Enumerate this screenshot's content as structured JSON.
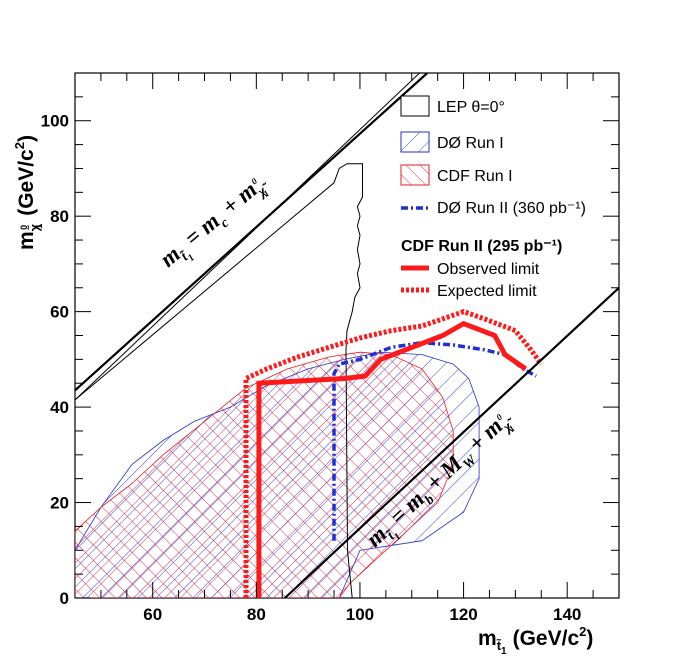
{
  "chart_data": {
    "type": "line",
    "xlim": [
      45,
      150
    ],
    "ylim": [
      0,
      110
    ],
    "x_ticks": [
      60,
      80,
      100,
      120,
      140
    ],
    "y_ticks": [
      0,
      20,
      40,
      60,
      80,
      100
    ],
    "grid": false,
    "legend_placement": "top-right",
    "xlabel": {
      "main": "m",
      "sub": "t̃",
      "subsub": "1",
      "unit": "(GeV/c",
      "sup": "2",
      "close": ")"
    },
    "ylabel": {
      "main": "m",
      "sub": "χ̃",
      "subsup": "0",
      "subsub": "1",
      "unit": "(GeV/c",
      "sup": "2",
      "close": ")"
    },
    "kinematic_labels": [
      {
        "id": "charm",
        "lhs": "m",
        "lhs_sub": "t̃",
        "lhs_subsub": "1",
        "eq": " = ",
        "t1": "m",
        "t1_sub": "c",
        "plus": " + ",
        "t2": "m",
        "t2_sub": "χ̃",
        "t2_subsup": "0",
        "t2_subsub": "1"
      },
      {
        "id": "bottom",
        "lhs": "m",
        "lhs_sub": "t̃",
        "lhs_subsub": "1",
        "eq": " = ",
        "t1": "m",
        "t1_sub": "b",
        "plus": " + ",
        "w": "M",
        "w_sub": "W",
        "plus2": " + ",
        "t2": "m",
        "t2_sub": "χ̃",
        "t2_subsup": "0",
        "t2_subsub": "1"
      }
    ],
    "kinematic_lines": [
      {
        "name": "charm",
        "points": [
          [
            45,
            43.5
          ],
          [
            113,
            110
          ]
        ]
      },
      {
        "name": "charm-inner",
        "points": [
          [
            45,
            41.5
          ],
          [
            111.5,
            110
          ]
        ]
      },
      {
        "name": "bottom",
        "points": [
          [
            85.5,
            0
          ],
          [
            150,
            65
          ]
        ]
      }
    ],
    "legend": {
      "lep": "LEP θ=0°",
      "d0_run1": "DØ Run I",
      "cdf_run1": "CDF Run I",
      "d0_run2": "DØ Run II (360 pb⁻¹)",
      "cdf_run2_head": "CDF Run II (295 pb⁻¹)",
      "observed": "Observed limit",
      "expected": "Expected limit"
    },
    "series": [
      {
        "name": "LEP θ=0°",
        "style": "thin-black",
        "points": [
          [
            45,
            41.5
          ],
          [
            95,
            87
          ],
          [
            96,
            90
          ],
          [
            97.5,
            91
          ],
          [
            100.5,
            91
          ],
          [
            100.5,
            84
          ],
          [
            99.5,
            82
          ],
          [
            100,
            80
          ],
          [
            99.5,
            78
          ],
          [
            100,
            76
          ],
          [
            99.5,
            73
          ],
          [
            100,
            70
          ],
          [
            99.5,
            68
          ],
          [
            100,
            65
          ],
          [
            99,
            63
          ],
          [
            98.5,
            60
          ],
          [
            97.5,
            56
          ],
          [
            97.3,
            52
          ],
          [
            97.6,
            10
          ],
          [
            98.5,
            0
          ]
        ]
      },
      {
        "name": "DØ Run I",
        "style": "blue-hatch",
        "points": [
          [
            45,
            10
          ],
          [
            50,
            19
          ],
          [
            56,
            28
          ],
          [
            62,
            33
          ],
          [
            68,
            37
          ],
          [
            75,
            40
          ],
          [
            82,
            44.5
          ],
          [
            90,
            48
          ],
          [
            97,
            50
          ],
          [
            104,
            51.5
          ],
          [
            112,
            51
          ],
          [
            118,
            49
          ],
          [
            121,
            46
          ],
          [
            123,
            40
          ],
          [
            123,
            25
          ],
          [
            120,
            18
          ],
          [
            112,
            12
          ],
          [
            100,
            10
          ],
          [
            96,
            0
          ],
          [
            45,
            0
          ]
        ]
      },
      {
        "name": "CDF Run I",
        "style": "red-crosshatch",
        "points": [
          [
            45,
            14
          ],
          [
            50,
            19
          ],
          [
            56,
            24
          ],
          [
            62,
            30
          ],
          [
            70,
            37
          ],
          [
            78,
            44
          ],
          [
            86,
            48
          ],
          [
            94,
            50.5
          ],
          [
            100,
            51.5
          ],
          [
            106,
            51
          ],
          [
            112,
            48
          ],
          [
            116,
            42
          ],
          [
            118,
            35
          ],
          [
            118,
            28
          ],
          [
            115,
            20
          ],
          [
            108,
            13
          ],
          [
            98,
            3
          ],
          [
            96,
            0
          ],
          [
            45,
            0
          ]
        ]
      },
      {
        "name": "DØ Run II (360 pb⁻¹)",
        "style": "blue-dashdot",
        "points": [
          [
            95,
            12
          ],
          [
            95,
            47
          ],
          [
            96,
            49
          ],
          [
            100,
            50
          ],
          [
            106,
            52.5
          ],
          [
            112,
            53.5
          ],
          [
            118,
            53
          ],
          [
            124,
            52
          ],
          [
            128,
            51
          ],
          [
            131.5,
            48
          ],
          [
            134,
            46.5
          ]
        ]
      },
      {
        "name": "Observed limit",
        "style": "red-solid",
        "points": [
          [
            80.5,
            0
          ],
          [
            80.5,
            45
          ],
          [
            89,
            45.5
          ],
          [
            97,
            46
          ],
          [
            101,
            46.5
          ],
          [
            104,
            50
          ],
          [
            110,
            52.5
          ],
          [
            116,
            55
          ],
          [
            120,
            57.5
          ],
          [
            126,
            55
          ],
          [
            128,
            51
          ],
          [
            132,
            48
          ]
        ]
      },
      {
        "name": "Expected limit",
        "style": "red-dotted",
        "points": [
          [
            78,
            0
          ],
          [
            78,
            46
          ],
          [
            82,
            48
          ],
          [
            88,
            50.5
          ],
          [
            94,
            52.5
          ],
          [
            100,
            54.5
          ],
          [
            106,
            56
          ],
          [
            112,
            57
          ],
          [
            116,
            58.5
          ],
          [
            120,
            60
          ],
          [
            124,
            58.5
          ],
          [
            130,
            56
          ],
          [
            133,
            52
          ],
          [
            135,
            49
          ]
        ]
      }
    ]
  }
}
